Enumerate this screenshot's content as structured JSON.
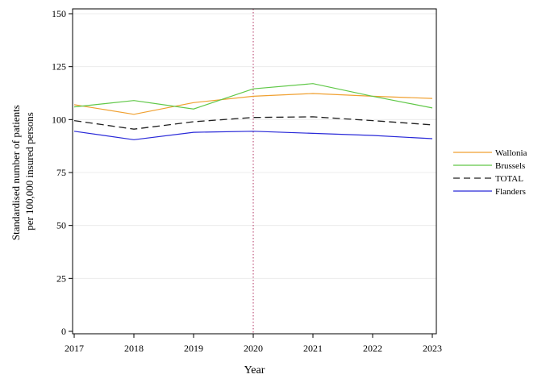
{
  "chart_data": {
    "type": "line",
    "xlabel": "Year",
    "ylabel_lines": [
      "Standardised number of patients",
      "per 100,000 insured persons"
    ],
    "x": [
      2017,
      2018,
      2019,
      2020,
      2021,
      2022,
      2023
    ],
    "ylim": [
      0,
      150
    ],
    "yticks": [
      0,
      25,
      50,
      75,
      100,
      125,
      150
    ],
    "grid": true,
    "legend_position": "right",
    "reference_line": {
      "x": 2020,
      "color": "#b03060",
      "style": "dotted"
    },
    "series": [
      {
        "name": "Wallonia",
        "color": "#f0a030",
        "style": "solid",
        "values": [
          107,
          102.5,
          108,
          111,
          112.3,
          111,
          110
        ]
      },
      {
        "name": "Brussels",
        "color": "#60c848",
        "style": "solid",
        "values": [
          106,
          109,
          105,
          114.5,
          117,
          111,
          105.5
        ]
      },
      {
        "name": "TOTAL",
        "color": "#202020",
        "style": "dashed",
        "values": [
          99.5,
          95.5,
          99,
          101,
          101.3,
          99.5,
          97.5
        ]
      },
      {
        "name": "Flanders",
        "color": "#2828d8",
        "style": "solid",
        "values": [
          94.5,
          90.5,
          94,
          94.5,
          93.5,
          92.5,
          91
        ]
      }
    ]
  }
}
